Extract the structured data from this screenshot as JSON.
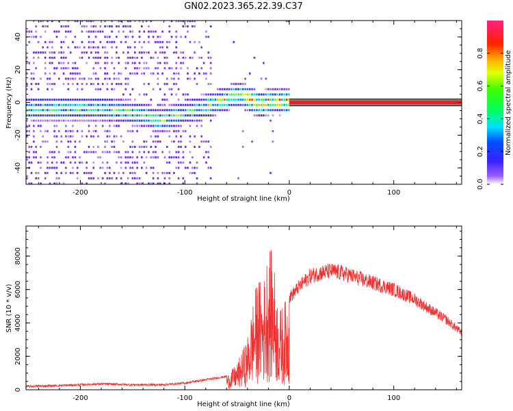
{
  "title": "GN02.2023.365.22.39.C37",
  "colors": {
    "snr_line": "#f03030",
    "band_core": "#ff1040",
    "band_edge": "#20ff40",
    "axis": "#000000"
  },
  "chart_data": [
    {
      "type": "heatmap",
      "title": "GN02.2023.365.22.39.C37",
      "xlabel": "Height of straight line (km)",
      "ylabel": "Frequency (Hz)",
      "xlim": [
        -252,
        165
      ],
      "ylim": [
        -50,
        50
      ],
      "xticks": [
        -200,
        -100,
        0,
        100
      ],
      "yticks": [
        -40,
        -20,
        0,
        20,
        40
      ],
      "colorbar": {
        "label": "Normalized spectral amplitude",
        "range": [
          0.0,
          1.0
        ],
        "ticks": [
          0.0,
          0.2,
          0.4,
          0.6,
          0.8
        ],
        "colormap": "rainbow (purple-blue-cyan-green-yellow-red)"
      },
      "ridge": [
        {
          "x": -205,
          "y": -4
        },
        {
          "x": -180,
          "y": -4
        },
        {
          "x": -160,
          "y": -6
        },
        {
          "x": -140,
          "y": -8
        },
        {
          "x": -125,
          "y": -12
        },
        {
          "x": -115,
          "y": -10
        },
        {
          "x": -100,
          "y": -6
        },
        {
          "x": -85,
          "y": -4
        },
        {
          "x": -70,
          "y": 0
        },
        {
          "x": -60,
          "y": 2
        },
        {
          "x": -50,
          "y": 4
        },
        {
          "x": -40,
          "y": 2
        },
        {
          "x": -30,
          "y": -2
        },
        {
          "x": -20,
          "y": 0
        },
        {
          "x": -5,
          "y": 0
        },
        {
          "x": 0,
          "y": 0
        },
        {
          "x": 165,
          "y": 0
        }
      ],
      "constant_band": {
        "x_start": 0,
        "x_end": 165,
        "y": 0,
        "amplitude": 1.0
      }
    },
    {
      "type": "line",
      "xlabel": "Height of straight line (km)",
      "ylabel": "SNR (10 * v/v)",
      "xlim": [
        -252,
        165
      ],
      "ylim": [
        0,
        9800
      ],
      "xticks": [
        -200,
        -100,
        0,
        100
      ],
      "yticks": [
        0,
        2000,
        4000,
        6000,
        8000
      ],
      "series": [
        {
          "x": [
            -252,
            -220,
            -200,
            -180,
            -150,
            -120,
            -100,
            -80,
            -60,
            -50,
            -40,
            -35,
            -30,
            -25,
            -20,
            -15,
            -10,
            -5,
            0,
            10,
            20,
            30,
            40,
            50,
            60,
            70,
            80,
            90,
            100,
            110,
            120,
            130,
            140,
            150,
            165
          ],
          "y": [
            200,
            250,
            300,
            350,
            300,
            300,
            400,
            600,
            800,
            1500,
            3000,
            5000,
            6500,
            6000,
            8500,
            7500,
            4500,
            5000,
            5500,
            6200,
            6800,
            7000,
            7100,
            7000,
            6800,
            6600,
            6400,
            6200,
            6000,
            5700,
            5400,
            5000,
            4600,
            4200,
            3400
          ]
        }
      ]
    }
  ]
}
